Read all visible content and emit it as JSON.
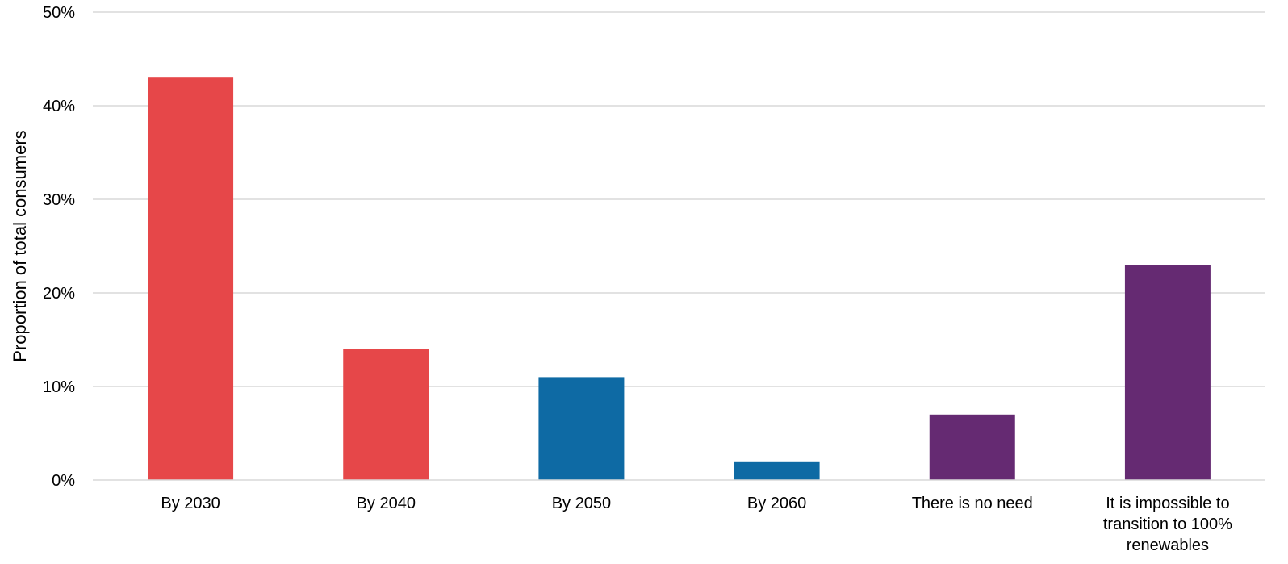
{
  "chart_data": {
    "type": "bar",
    "title": "",
    "xlabel": "",
    "ylabel": "Proportion of total consumers",
    "ylim": [
      0,
      50
    ],
    "y_ticks": [
      0,
      10,
      20,
      30,
      40,
      50
    ],
    "y_tick_labels": [
      "0%",
      "10%",
      "20%",
      "30%",
      "40%",
      "50%"
    ],
    "grid": true,
    "legend": "none",
    "categories": [
      [
        "By 2030"
      ],
      [
        "By 2040"
      ],
      [
        "By 2050"
      ],
      [
        "By 2060"
      ],
      [
        "There is no need"
      ],
      [
        "It is impossible to",
        "transition to 100%",
        "renewables"
      ]
    ],
    "values": [
      43,
      14,
      11,
      2,
      7,
      23
    ],
    "bar_colors": [
      "#e64749",
      "#e64749",
      "#0e6aa4",
      "#0e6aa4",
      "#652a72",
      "#652a72"
    ]
  }
}
